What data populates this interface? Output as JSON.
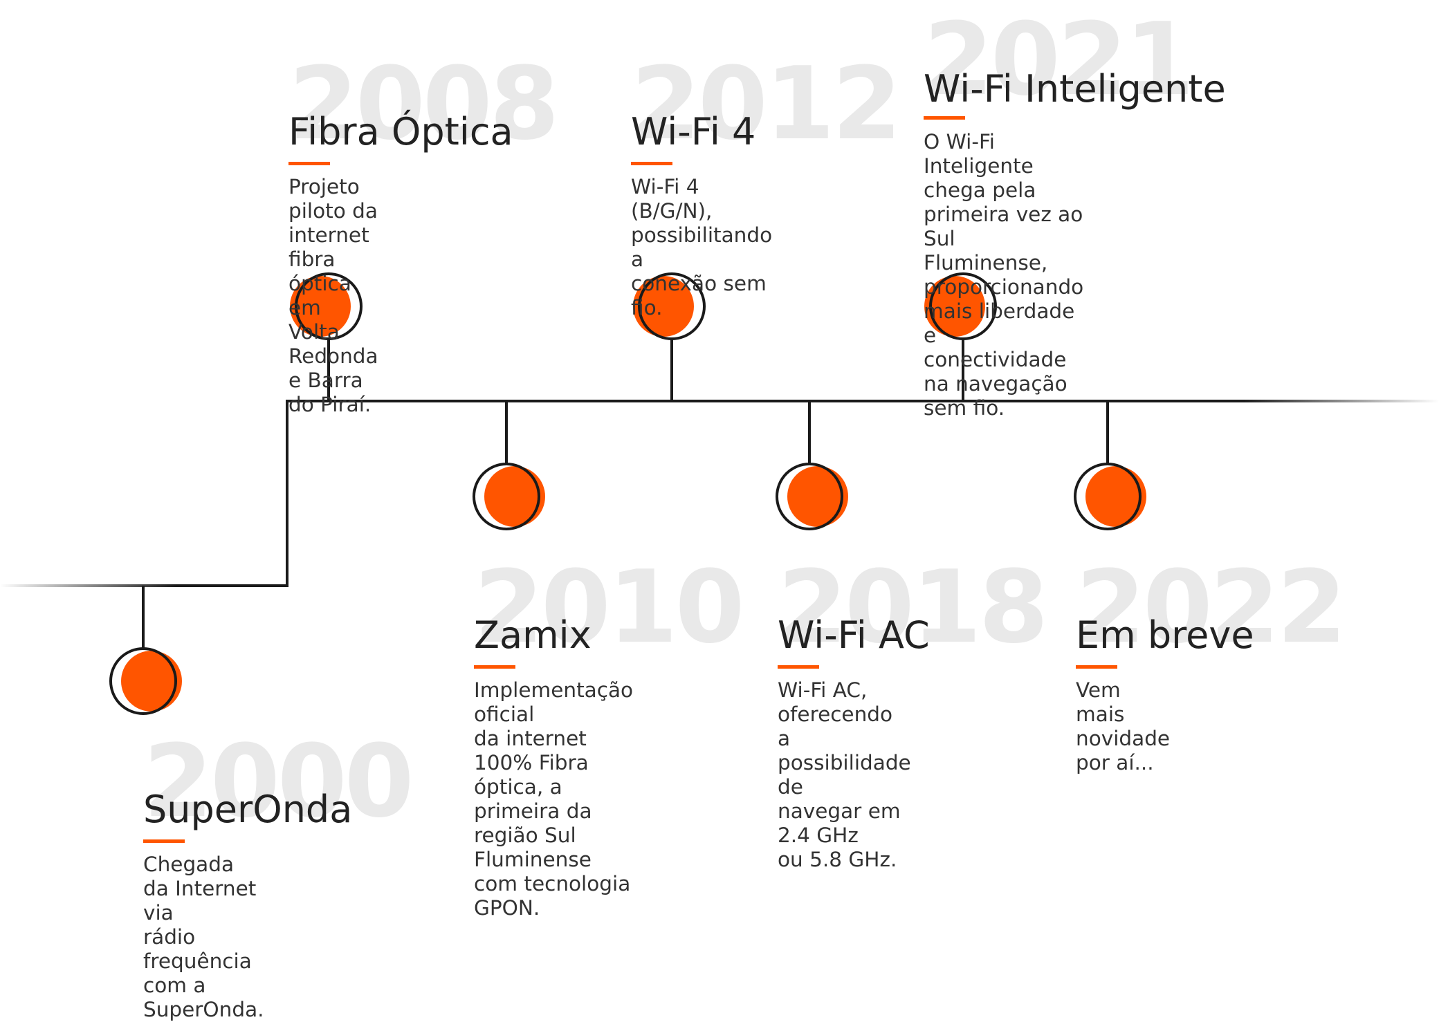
{
  "colors": {
    "accent": "#ff5500",
    "line": "#1a1a1a",
    "year_watermark": "#e9e9e9",
    "title": "#222222",
    "text": "#333333"
  },
  "events": [
    {
      "year": "2000",
      "title": "SuperOnda",
      "description": "Chegada da Internet via\nrádio frequência com a\nSuperOnda."
    },
    {
      "year": "2008",
      "title": "Fibra Óptica",
      "description": "Projeto piloto da internet\nfibra óptica em Volta\nRedonda e Barra do Piraí."
    },
    {
      "year": "2010",
      "title": "Zamix",
      "description": "Implementação oficial\nda internet 100% Fibra\nóptica, a primeira da\nregião Sul Fluminense\ncom tecnologia GPON."
    },
    {
      "year": "2012",
      "title": "Wi-Fi 4",
      "description": "Wi-Fi 4 (B/G/N),\npossibilitando a\nconexão sem fio."
    },
    {
      "year": "2018",
      "title": "Wi-Fi AC",
      "description": "Wi-Fi AC, oferecendo\na possibilidade de\nnavegar em 2.4 GHz\nou 5.8 GHz."
    },
    {
      "year": "2021",
      "title": "Wi-Fi Inteligente",
      "description": "O Wi-Fi Inteligente chega pela\nprimeira vez ao Sul Fluminense,\nproporcionando mais liberdade\ne conectividade na navegação\nsem fio."
    },
    {
      "year": "2022",
      "title": "Em breve",
      "description": "Vem mais\nnovidade por aí..."
    }
  ]
}
